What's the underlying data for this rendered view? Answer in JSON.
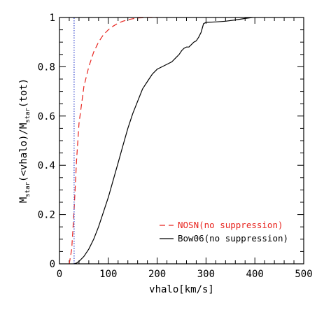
{
  "chart_data": {
    "type": "line",
    "xlabel": "vhalo[km/s]",
    "ylabel": {
      "parts": [
        {
          "text": "M",
          "sub": false
        },
        {
          "text": "star",
          "sub": true
        },
        {
          "text": "(<vhalo)/M",
          "sub": false
        },
        {
          "text": "star",
          "sub": true
        },
        {
          "text": "(tot)",
          "sub": false
        }
      ]
    },
    "xlim": [
      0,
      500
    ],
    "ylim": [
      0,
      1
    ],
    "x_ticks": [
      0,
      100,
      200,
      300,
      400,
      500
    ],
    "x_tick_labels": [
      "0",
      "100",
      "200",
      "300",
      "400",
      "500"
    ],
    "y_ticks": [
      0,
      0.2,
      0.4,
      0.6,
      0.8,
      1
    ],
    "y_tick_labels": [
      "0",
      "0.2",
      "0.4",
      "0.6",
      "0.8",
      "1"
    ],
    "grid": false,
    "legend_position": "bottom-right",
    "series": [
      {
        "name": "NOSN(no suppression)",
        "color": "#e8231d",
        "style": "dashed",
        "x": [
          20,
          25,
          30,
          35,
          40,
          50,
          60,
          70,
          80,
          90,
          100,
          110,
          120,
          130,
          140,
          150,
          160,
          170,
          180,
          200
        ],
        "y": [
          0.0,
          0.06,
          0.22,
          0.42,
          0.57,
          0.72,
          0.8,
          0.86,
          0.9,
          0.93,
          0.95,
          0.965,
          0.977,
          0.985,
          0.991,
          0.995,
          0.998,
          0.999,
          1.0,
          1.0
        ]
      },
      {
        "name": "Bow06(no suppression)",
        "color": "#000000",
        "style": "solid",
        "x": [
          30,
          35,
          40,
          50,
          60,
          70,
          80,
          90,
          100,
          110,
          120,
          130,
          140,
          150,
          160,
          170,
          180,
          190,
          200,
          210,
          220,
          230,
          240,
          245,
          250,
          255,
          260,
          265,
          270,
          275,
          280,
          285,
          290,
          295,
          300,
          320,
          340,
          360,
          380,
          395
        ],
        "y": [
          0.0,
          0.003,
          0.01,
          0.03,
          0.06,
          0.1,
          0.15,
          0.21,
          0.27,
          0.34,
          0.41,
          0.48,
          0.55,
          0.61,
          0.66,
          0.71,
          0.74,
          0.77,
          0.79,
          0.8,
          0.81,
          0.82,
          0.84,
          0.85,
          0.865,
          0.875,
          0.88,
          0.88,
          0.89,
          0.9,
          0.905,
          0.92,
          0.94,
          0.975,
          0.98,
          0.982,
          0.985,
          0.99,
          0.996,
          1.0
        ]
      },
      {
        "name": "",
        "color": "#3344cc",
        "style": "dotted",
        "x": [
          30,
          30
        ],
        "y": [
          0,
          1
        ]
      }
    ]
  }
}
